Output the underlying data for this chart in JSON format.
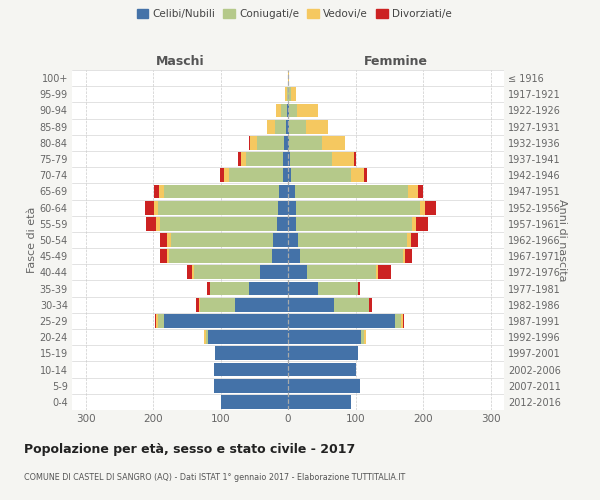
{
  "age_groups": [
    "0-4",
    "5-9",
    "10-14",
    "15-19",
    "20-24",
    "25-29",
    "30-34",
    "35-39",
    "40-44",
    "45-49",
    "50-54",
    "55-59",
    "60-64",
    "65-69",
    "70-74",
    "75-79",
    "80-84",
    "85-89",
    "90-94",
    "95-99",
    "100+"
  ],
  "birth_years": [
    "2012-2016",
    "2007-2011",
    "2002-2006",
    "1997-2001",
    "1992-1996",
    "1987-1991",
    "1982-1986",
    "1977-1981",
    "1972-1976",
    "1967-1971",
    "1962-1966",
    "1957-1961",
    "1952-1956",
    "1947-1951",
    "1942-1946",
    "1937-1941",
    "1932-1936",
    "1927-1931",
    "1922-1926",
    "1917-1921",
    "≤ 1916"
  ],
  "male": {
    "celibi": [
      100,
      110,
      110,
      108,
      118,
      183,
      78,
      58,
      42,
      23,
      22,
      16,
      15,
      13,
      8,
      7,
      6,
      3,
      2,
      0,
      0
    ],
    "coniugati": [
      0,
      0,
      0,
      0,
      4,
      10,
      52,
      58,
      98,
      153,
      152,
      174,
      178,
      170,
      80,
      55,
      40,
      16,
      8,
      2,
      0
    ],
    "vedovi": [
      0,
      0,
      0,
      0,
      2,
      2,
      2,
      0,
      2,
      3,
      5,
      5,
      5,
      8,
      7,
      8,
      10,
      12,
      8,
      2,
      0
    ],
    "divorziati": [
      0,
      0,
      0,
      0,
      0,
      2,
      4,
      4,
      8,
      10,
      10,
      16,
      14,
      8,
      6,
      4,
      2,
      0,
      0,
      0,
      0
    ]
  },
  "female": {
    "nubili": [
      93,
      107,
      100,
      103,
      108,
      158,
      68,
      45,
      28,
      18,
      15,
      12,
      12,
      10,
      5,
      3,
      2,
      2,
      2,
      0,
      0
    ],
    "coniugate": [
      0,
      0,
      0,
      0,
      5,
      10,
      52,
      58,
      103,
      152,
      162,
      172,
      183,
      168,
      88,
      62,
      48,
      24,
      12,
      4,
      0
    ],
    "vedove": [
      0,
      0,
      0,
      0,
      2,
      2,
      0,
      0,
      2,
      3,
      5,
      5,
      8,
      14,
      20,
      33,
      34,
      33,
      30,
      8,
      2
    ],
    "divorziate": [
      0,
      0,
      0,
      0,
      0,
      2,
      4,
      4,
      20,
      10,
      10,
      18,
      16,
      8,
      4,
      2,
      0,
      0,
      0,
      0,
      0
    ]
  },
  "colors": {
    "celibi": "#4472a8",
    "coniugati": "#b5c98a",
    "vedovi": "#f5c860",
    "divorziati": "#cc2222"
  },
  "xlim": 320,
  "xticks": [
    -300,
    -200,
    -100,
    0,
    100,
    200,
    300
  ],
  "title": "Popolazione per età, sesso e stato civile - 2017",
  "subtitle": "COMUNE DI CASTEL DI SANGRO (AQ) - Dati ISTAT 1° gennaio 2017 - Elaborazione TUTTITALIA.IT",
  "ylabel_left": "Fasce di età",
  "ylabel_right": "Anni di nascita",
  "header_left": "Maschi",
  "header_right": "Femmine",
  "legend_labels": [
    "Celibi/Nubili",
    "Coniugati/e",
    "Vedovi/e",
    "Divorziati/e"
  ],
  "bg_color": "#f5f5f2",
  "plot_bg": "#ffffff",
  "bar_height": 0.85
}
